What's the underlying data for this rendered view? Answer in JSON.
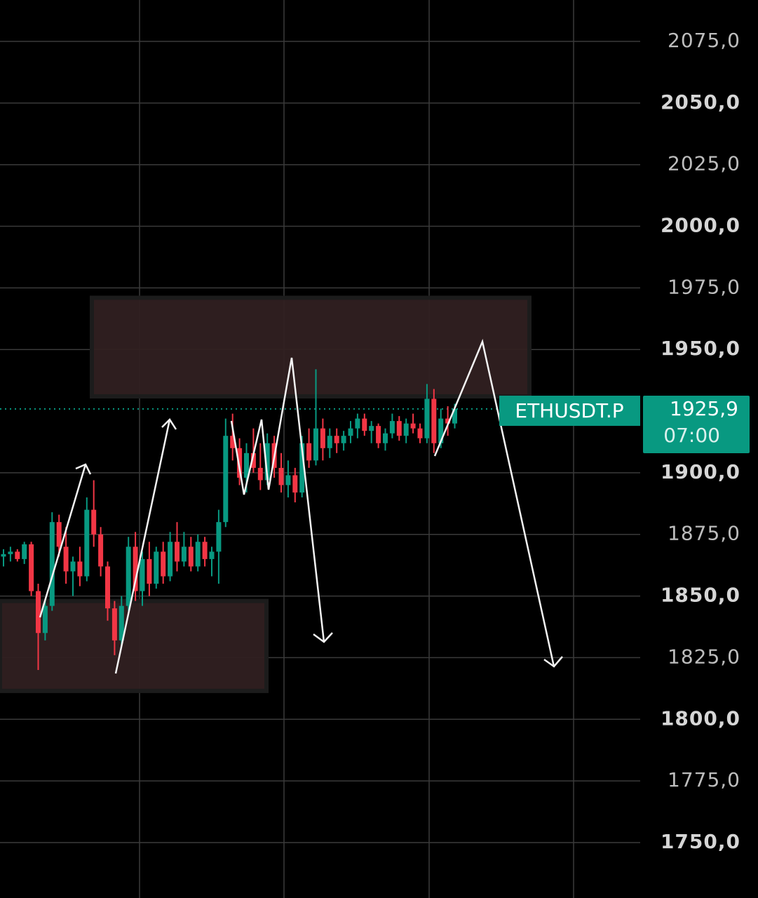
{
  "chart_data": {
    "type": "candlestick",
    "ylim": [
      1727.5,
      2091.8
    ],
    "yticks": [
      {
        "value": 2075,
        "label": "2075,0"
      },
      {
        "value": 2050,
        "label": "2050,0"
      },
      {
        "value": 2025,
        "label": "2025,0"
      },
      {
        "value": 2000,
        "label": "2000,0"
      },
      {
        "value": 1975,
        "label": "1975,0"
      },
      {
        "value": 1950,
        "label": "1950,0"
      },
      {
        "value": 1900,
        "label": "1900,0"
      },
      {
        "value": 1875,
        "label": "1875,0"
      },
      {
        "value": 1850,
        "label": "1850,0"
      },
      {
        "value": 1825,
        "label": "1825,0"
      },
      {
        "value": 1800,
        "label": "1800,0"
      },
      {
        "value": 1775,
        "label": "1775,0"
      },
      {
        "value": 1750,
        "label": "1750,0"
      }
    ],
    "grid": true,
    "up_color": "#089981",
    "down_color": "#f23645",
    "symbol": "ETHUSDT.P",
    "last_price": {
      "value": 1925.9,
      "label": "1925,9"
    },
    "countdown": "07:00",
    "zones": [
      {
        "top": 1971,
        "bottom": 1931
      },
      {
        "top": 1848,
        "bottom": 1811.5
      }
    ],
    "candles": [
      [
        1866,
        1869,
        1862,
        1867
      ],
      [
        1867,
        1870,
        1864,
        1868
      ],
      [
        1868,
        1869,
        1864,
        1865
      ],
      [
        1865,
        1872,
        1863,
        1871
      ],
      [
        1871,
        1872,
        1850,
        1852
      ],
      [
        1852,
        1855,
        1820,
        1835
      ],
      [
        1835,
        1848,
        1832,
        1846
      ],
      [
        1846,
        1884,
        1844,
        1880
      ],
      [
        1880,
        1883,
        1866,
        1870
      ],
      [
        1870,
        1878,
        1855,
        1860
      ],
      [
        1860,
        1866,
        1850,
        1864
      ],
      [
        1864,
        1870,
        1854,
        1858
      ],
      [
        1858,
        1890,
        1856,
        1885
      ],
      [
        1885,
        1897,
        1870,
        1875
      ],
      [
        1875,
        1878,
        1858,
        1862
      ],
      [
        1862,
        1864,
        1840,
        1845
      ],
      [
        1845,
        1848,
        1826,
        1832
      ],
      [
        1832,
        1850,
        1830,
        1846
      ],
      [
        1846,
        1874,
        1844,
        1870
      ],
      [
        1870,
        1876,
        1848,
        1852
      ],
      [
        1852,
        1868,
        1846,
        1865
      ],
      [
        1865,
        1872,
        1850,
        1855
      ],
      [
        1855,
        1870,
        1853,
        1868
      ],
      [
        1868,
        1872,
        1855,
        1858
      ],
      [
        1858,
        1876,
        1856,
        1872
      ],
      [
        1872,
        1880,
        1860,
        1864
      ],
      [
        1864,
        1876,
        1862,
        1870
      ],
      [
        1870,
        1874,
        1860,
        1862
      ],
      [
        1862,
        1875,
        1860,
        1872
      ],
      [
        1872,
        1874,
        1862,
        1865
      ],
      [
        1865,
        1870,
        1858,
        1868
      ],
      [
        1868,
        1885,
        1855,
        1880
      ],
      [
        1880,
        1922,
        1878,
        1915
      ],
      [
        1915,
        1924,
        1905,
        1910
      ],
      [
        1910,
        1914,
        1895,
        1898
      ],
      [
        1898,
        1912,
        1892,
        1908
      ],
      [
        1908,
        1918,
        1900,
        1902
      ],
      [
        1902,
        1912,
        1893,
        1897
      ],
      [
        1897,
        1916,
        1895,
        1912
      ],
      [
        1912,
        1915,
        1898,
        1902
      ],
      [
        1902,
        1908,
        1892,
        1895
      ],
      [
        1895,
        1905,
        1890,
        1899
      ],
      [
        1899,
        1902,
        1888,
        1892
      ],
      [
        1892,
        1915,
        1890,
        1912
      ],
      [
        1912,
        1918,
        1902,
        1905
      ],
      [
        1905,
        1942,
        1903,
        1918
      ],
      [
        1918,
        1922,
        1905,
        1910
      ],
      [
        1910,
        1918,
        1906,
        1915
      ],
      [
        1915,
        1918,
        1908,
        1912
      ],
      [
        1912,
        1917,
        1909,
        1915
      ],
      [
        1915,
        1921,
        1912,
        1918
      ],
      [
        1918,
        1924,
        1914,
        1922
      ],
      [
        1922,
        1924,
        1915,
        1917
      ],
      [
        1917,
        1921,
        1912,
        1919
      ],
      [
        1919,
        1920,
        1910,
        1912
      ],
      [
        1912,
        1918,
        1909,
        1916
      ],
      [
        1916,
        1924,
        1914,
        1921
      ],
      [
        1921,
        1923,
        1913,
        1915
      ],
      [
        1915,
        1922,
        1912,
        1920
      ],
      [
        1920,
        1924,
        1916,
        1918
      ],
      [
        1918,
        1920,
        1912,
        1914
      ],
      [
        1914,
        1936,
        1912,
        1930
      ],
      [
        1930,
        1934,
        1908,
        1912
      ],
      [
        1912,
        1926,
        1910,
        1922
      ],
      [
        1922,
        1927,
        1915,
        1920
      ],
      [
        1920,
        1928,
        1918,
        1925.9
      ]
    ]
  }
}
